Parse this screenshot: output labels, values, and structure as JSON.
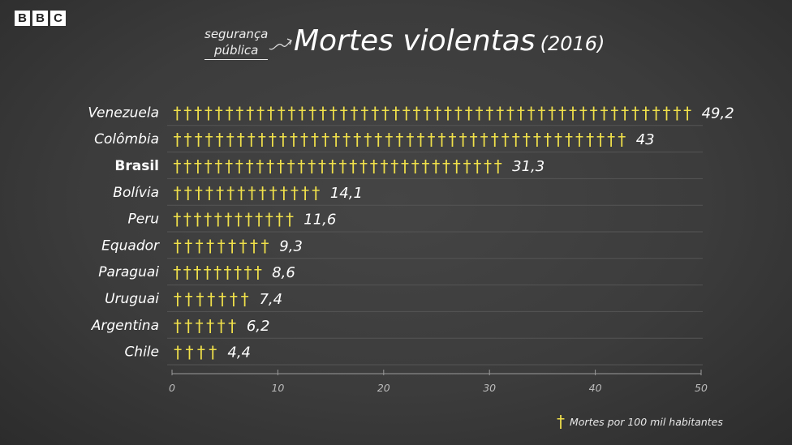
{
  "brand": {
    "letters": [
      "B",
      "B",
      "C"
    ]
  },
  "kicker": {
    "line1": "segurança",
    "line2": "pública"
  },
  "title": {
    "main": "Mortes violentas",
    "year": "(2016)"
  },
  "legend": {
    "symbol": "†",
    "label": "Mortes por 100 mil habitantes"
  },
  "colors": {
    "cross": "#f0e04a",
    "background": "#3a3a3a",
    "text": "#ffffff",
    "axis": "#9a9a9a"
  },
  "chart_data": {
    "type": "bar",
    "categories": [
      "Venezuela",
      "Colômbia",
      "Brasil",
      "Bolívia",
      "Peru",
      "Equador",
      "Paraguai",
      "Uruguai",
      "Argentina",
      "Chile"
    ],
    "values": [
      49.2,
      43,
      31.3,
      14.1,
      11.6,
      9.3,
      8.6,
      7.4,
      6.2,
      4.4
    ],
    "value_labels": [
      "49,2",
      "43",
      "31,3",
      "14,1",
      "11,6",
      "9,3",
      "8,6",
      "7,4",
      "6,2",
      "4,4"
    ],
    "highlight": "Brasil",
    "symbol": "†",
    "xticks": [
      0,
      10,
      20,
      30,
      40,
      50
    ],
    "xlim": [
      0,
      50
    ],
    "orientation": "horizontal",
    "grid": false,
    "legend_position": "bottom-right"
  }
}
